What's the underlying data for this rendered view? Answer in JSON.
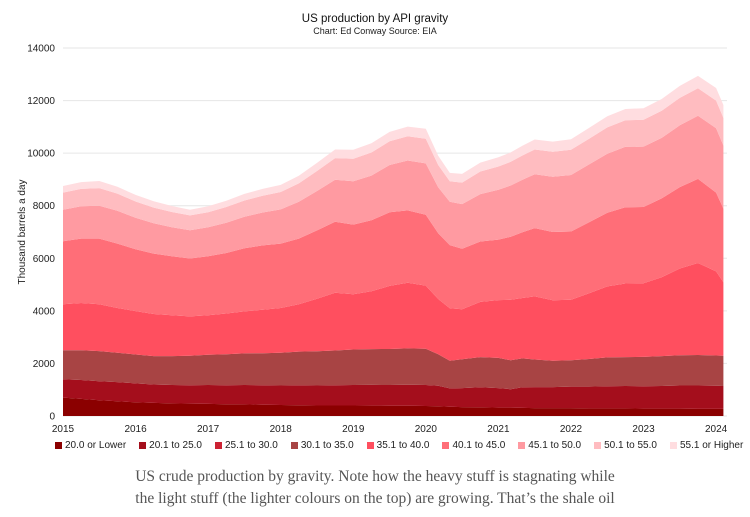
{
  "chart_data": {
    "type": "area",
    "stacked": true,
    "title": "US production by API gravity",
    "subtitle": "Chart: Ed Conway Source: EIA",
    "xlabel": "",
    "ylabel": "Thousand barrels a day",
    "xlim": [
      2015,
      2024.15
    ],
    "ylim": [
      0,
      14000
    ],
    "yticks": [
      0,
      2000,
      4000,
      6000,
      8000,
      10000,
      12000,
      14000
    ],
    "xticks": [
      "2015",
      "2016",
      "2017",
      "2018",
      "2019",
      "2020",
      "2021",
      "2022",
      "2023",
      "2024"
    ],
    "x": [
      2015.0,
      2015.25,
      2015.5,
      2015.75,
      2016.0,
      2016.25,
      2016.5,
      2016.75,
      2017.0,
      2017.25,
      2017.5,
      2017.75,
      2018.0,
      2018.25,
      2018.5,
      2018.75,
      2019.0,
      2019.25,
      2019.5,
      2019.75,
      2020.0,
      2020.17,
      2020.33,
      2020.5,
      2020.75,
      2021.0,
      2021.17,
      2021.33,
      2021.5,
      2021.75,
      2022.0,
      2022.25,
      2022.5,
      2022.75,
      2023.0,
      2023.25,
      2023.5,
      2023.75,
      2024.0,
      2024.1
    ],
    "series": [
      {
        "name": "20.0 or Lower",
        "color": "#8b0000",
        "values": [
          700,
          650,
          600,
          560,
          520,
          500,
          480,
          470,
          460,
          450,
          440,
          430,
          420,
          410,
          400,
          400,
          400,
          395,
          390,
          390,
          380,
          370,
          350,
          340,
          330,
          320,
          320,
          310,
          300,
          300,
          300,
          290,
          290,
          290,
          280,
          280,
          280,
          270,
          270,
          270
        ]
      },
      {
        "name": "20.1 to 25.0",
        "color": "#a40e1c",
        "values": [
          700,
          720,
          720,
          730,
          720,
          700,
          700,
          700,
          720,
          720,
          740,
          740,
          740,
          760,
          760,
          770,
          780,
          790,
          790,
          800,
          800,
          780,
          700,
          720,
          760,
          740,
          700,
          780,
          800,
          800,
          820,
          830,
          840,
          850,
          850,
          860,
          880,
          890,
          880,
          870
        ]
      },
      {
        "name": "25.1 to 30.0",
        "color": "#cc2233",
        "values": [
          0,
          0,
          0,
          0,
          0,
          0,
          0,
          0,
          0,
          0,
          0,
          0,
          0,
          0,
          0,
          0,
          0,
          0,
          0,
          0,
          0,
          0,
          0,
          0,
          0,
          0,
          0,
          0,
          0,
          0,
          0,
          0,
          0,
          0,
          0,
          0,
          0,
          0,
          0,
          0
        ]
      },
      {
        "name": "30.1 to 35.0",
        "color": "#a84444",
        "values": [
          1100,
          1130,
          1150,
          1120,
          1100,
          1080,
          1100,
          1120,
          1150,
          1180,
          1200,
          1220,
          1250,
          1280,
          1300,
          1320,
          1350,
          1360,
          1370,
          1380,
          1380,
          1200,
          1050,
          1100,
          1150,
          1150,
          1100,
          1100,
          1050,
          1000,
          1000,
          1050,
          1100,
          1100,
          1120,
          1140,
          1150,
          1160,
          1150,
          1150
        ]
      },
      {
        "name": "35.1 to 40.0",
        "color": "#ff4f5f",
        "values": [
          1750,
          1800,
          1780,
          1700,
          1650,
          1600,
          1550,
          1500,
          1500,
          1550,
          1600,
          1650,
          1700,
          1800,
          2000,
          2200,
          2100,
          2200,
          2400,
          2500,
          2400,
          2100,
          2000,
          1900,
          2100,
          2200,
          2300,
          2300,
          2400,
          2300,
          2300,
          2500,
          2700,
          2800,
          2800,
          3000,
          3300,
          3500,
          3200,
          2800
        ]
      },
      {
        "name": "40.1 to 45.0",
        "color": "#ff6e78",
        "values": [
          2400,
          2450,
          2500,
          2450,
          2350,
          2300,
          2250,
          2200,
          2250,
          2300,
          2400,
          2450,
          2450,
          2500,
          2600,
          2700,
          2650,
          2700,
          2800,
          2750,
          2700,
          2500,
          2400,
          2300,
          2300,
          2300,
          2400,
          2500,
          2600,
          2600,
          2600,
          2700,
          2800,
          2900,
          2900,
          3000,
          3100,
          3200,
          3000,
          2800
        ]
      },
      {
        "name": "45.1 to 50.0",
        "color": "#ff9aa1",
        "values": [
          1200,
          1230,
          1250,
          1250,
          1200,
          1150,
          1100,
          1080,
          1100,
          1150,
          1200,
          1250,
          1300,
          1400,
          1500,
          1600,
          1650,
          1700,
          1800,
          1900,
          1950,
          1750,
          1650,
          1700,
          1800,
          1900,
          1950,
          2000,
          2050,
          2100,
          2150,
          2200,
          2250,
          2300,
          2300,
          2300,
          2350,
          2400,
          2450,
          2400
        ]
      },
      {
        "name": "50.1 to 55.0",
        "color": "#ffbcc0",
        "values": [
          650,
          660,
          670,
          650,
          620,
          600,
          580,
          560,
          570,
          600,
          620,
          640,
          660,
          700,
          760,
          820,
          860,
          880,
          900,
          920,
          940,
          850,
          780,
          820,
          860,
          880,
          900,
          920,
          940,
          950,
          960,
          980,
          1000,
          1010,
          1020,
          1030,
          1040,
          1050,
          1050,
          1050
        ]
      },
      {
        "name": "55.1 or Higher",
        "color": "#ffdde0",
        "values": [
          250,
          260,
          270,
          260,
          250,
          240,
          230,
          220,
          230,
          240,
          250,
          260,
          270,
          290,
          310,
          330,
          340,
          350,
          360,
          370,
          380,
          350,
          320,
          330,
          340,
          350,
          360,
          370,
          380,
          390,
          400,
          410,
          420,
          430,
          440,
          450,
          460,
          470,
          480,
          490
        ]
      }
    ]
  },
  "caption": {
    "line1": "US crude production by gravity. Note how the heavy stuff is stagnating while",
    "line2": "the light stuff (the lighter colours on the top) are growing. That’s the shale oil"
  }
}
